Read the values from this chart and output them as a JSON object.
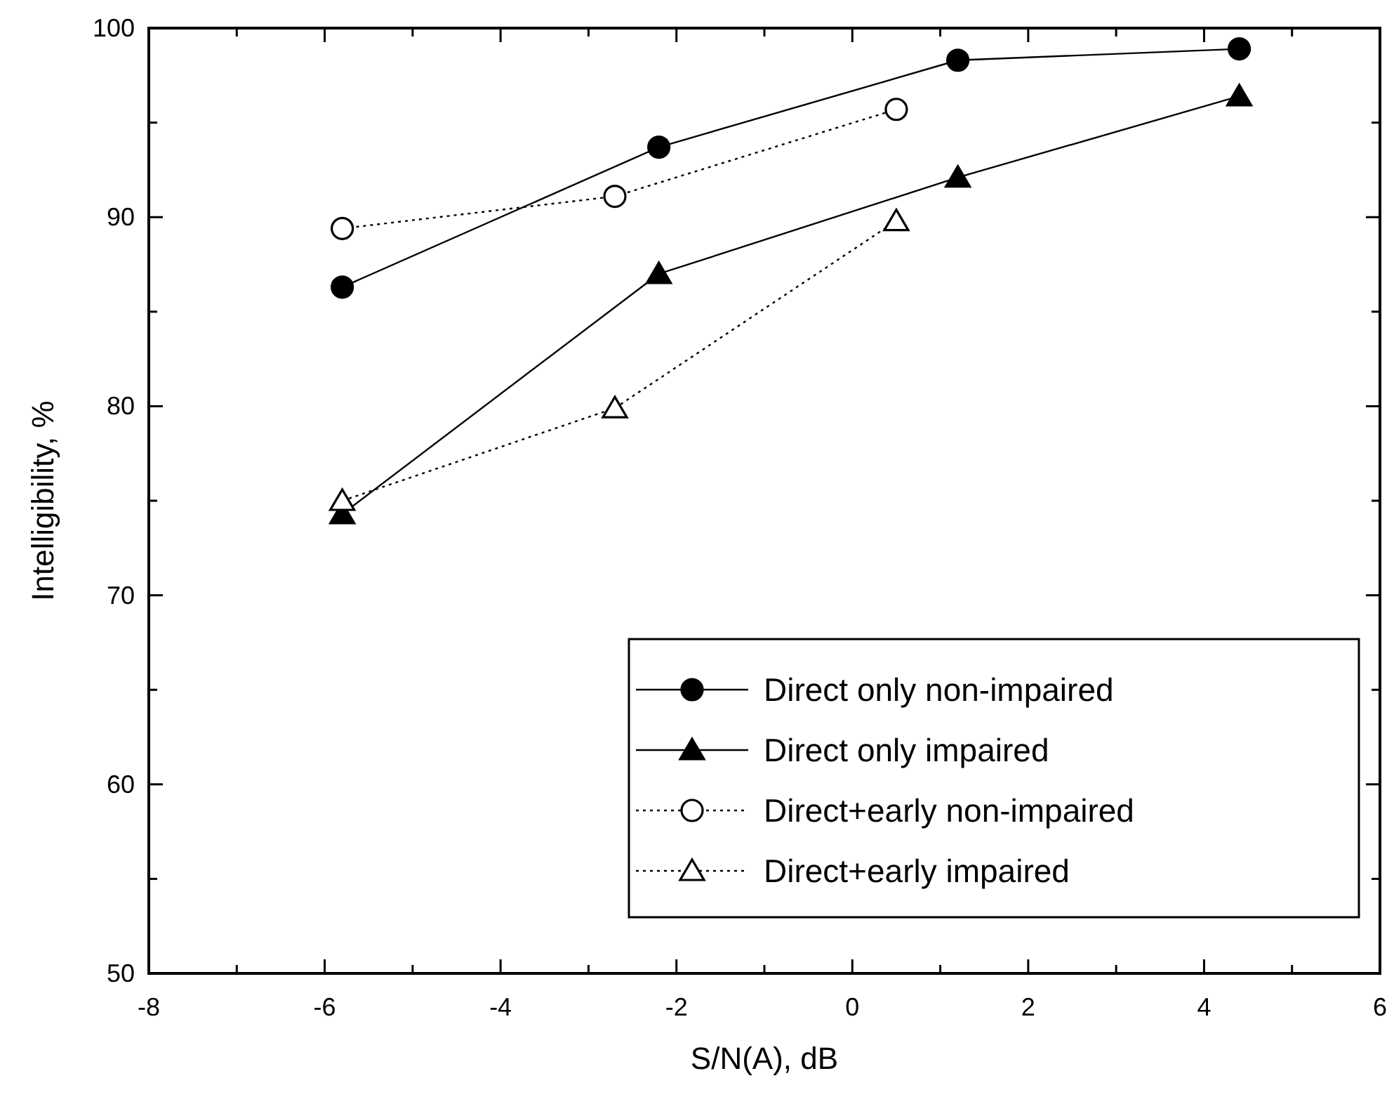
{
  "chart_data": {
    "type": "line",
    "xlabel": "S/N(A), dB",
    "ylabel": "Intelligibility, %",
    "xlim": [
      -8,
      6
    ],
    "ylim": [
      50,
      100
    ],
    "xticks": [
      -8,
      {
        "value": -7,
        "label": null
      },
      -6,
      {
        "value": -5,
        "label": null
      },
      -4,
      {
        "value": -3,
        "label": null
      },
      -2,
      {
        "value": -1,
        "label": null
      },
      0,
      {
        "value": 1,
        "label": null
      },
      2,
      {
        "value": 3,
        "label": null
      },
      4,
      {
        "value": 5,
        "label": null
      },
      6
    ],
    "yticks": [
      50,
      {
        "value": 55,
        "label": null
      },
      60,
      {
        "value": 65,
        "label": null
      },
      70,
      {
        "value": 75,
        "label": null
      },
      80,
      {
        "value": 85,
        "label": null
      },
      90,
      {
        "value": 95,
        "label": null
      },
      100
    ],
    "grid": false,
    "legend": "bottom right",
    "series": [
      {
        "name": "Direct only non-impaired",
        "color": "#000000",
        "marker": "circle",
        "line_style": "solid",
        "x": [
          -5.8,
          -2.2,
          1.2,
          4.4
        ],
        "values": [
          86.3,
          93.7,
          98.3,
          98.9
        ]
      },
      {
        "name": "Direct only impaired",
        "color": "#000000",
        "marker": "triangle",
        "line_style": "solid",
        "x": [
          -5.8,
          -2.2,
          1.2,
          4.4
        ],
        "values": [
          74.3,
          87.0,
          92.1,
          96.4
        ]
      },
      {
        "name": "Direct+early non-impaired",
        "color": "#000000",
        "marker": "circle",
        "line_style": "dotted",
        "x": [
          -5.8,
          -2.7,
          0.5
        ],
        "values": [
          89.4,
          91.1,
          95.7
        ]
      },
      {
        "name": "Direct+early impaired",
        "color": "#000000",
        "marker": "triangle",
        "line_style": "dotted",
        "x": [
          -5.8,
          -2.7,
          0.5
        ],
        "values": [
          75.0,
          79.9,
          89.8
        ]
      }
    ]
  }
}
